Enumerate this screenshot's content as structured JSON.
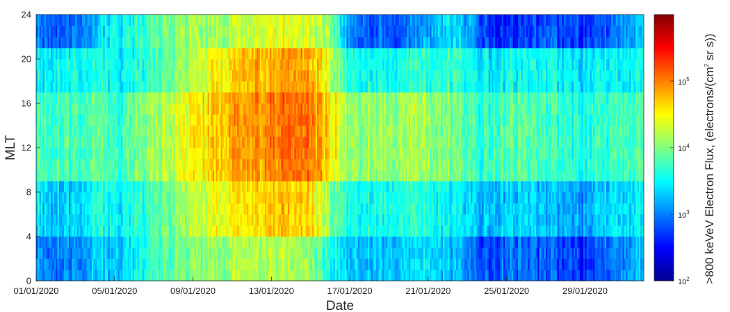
{
  "chart_data": {
    "type": "heatmap",
    "xlabel": "Date",
    "ylabel": "MLT",
    "x_tick_labels": [
      "01/01/2020",
      "05/01/2020",
      "09/01/2020",
      "13/01/2020",
      "17/01/2020",
      "21/01/2020",
      "25/01/2020",
      "29/01/2020"
    ],
    "x_range": [
      "2020-01-01",
      "2020-02-01"
    ],
    "y_ticks": [
      0,
      4,
      8,
      12,
      16,
      20,
      24
    ],
    "ylim": [
      0,
      24
    ],
    "y_bin_hours": 1,
    "colorbar": {
      "label_prefix": ">800 keVeV Electron Flux, (electrons/(cm",
      "label_sup": "2",
      "label_suffix": " sr s))",
      "scale": "log",
      "range": [
        100,
        1000000
      ],
      "ticks": [
        {
          "base": "10",
          "exp": "2"
        },
        {
          "base": "10",
          "exp": "3"
        },
        {
          "base": "10",
          "exp": "4"
        },
        {
          "base": "10",
          "exp": "5"
        }
      ],
      "colormap": "jet"
    },
    "daily_log10_flux_by_mlt_sector": {
      "description_days": "day 1 = 01/01/2020 ... day 32",
      "night_21_24": [
        3.0,
        2.9,
        2.9,
        3.2,
        3.5,
        3.6,
        3.8,
        4.0,
        4.1,
        4.1,
        4.2,
        4.3,
        4.4,
        4.4,
        4.3,
        4.1,
        3.0,
        2.9,
        2.9,
        3.0,
        3.2,
        3.4,
        3.2,
        2.7,
        2.6,
        2.7,
        2.8,
        2.8,
        2.7,
        2.8,
        3.1,
        3.3
      ],
      "evening_17_21": [
        3.5,
        3.5,
        3.5,
        3.6,
        3.4,
        3.6,
        3.7,
        4.0,
        4.2,
        4.5,
        4.6,
        4.8,
        4.8,
        4.9,
        4.8,
        4.3,
        3.6,
        3.6,
        3.6,
        3.7,
        3.7,
        3.7,
        3.6,
        3.4,
        3.5,
        3.5,
        3.5,
        3.5,
        3.4,
        3.5,
        3.5,
        3.6
      ],
      "day_9_17": [
        3.8,
        3.8,
        3.7,
        3.9,
        3.6,
        3.9,
        4.1,
        4.3,
        4.5,
        4.7,
        4.8,
        4.9,
        5.0,
        5.1,
        5.0,
        4.6,
        4.1,
        4.1,
        4.1,
        4.2,
        4.1,
        4.0,
        3.8,
        3.7,
        3.8,
        3.8,
        3.7,
        3.7,
        3.6,
        3.7,
        3.8,
        3.8
      ],
      "dawn_4_9": [
        3.4,
        3.3,
        3.3,
        3.6,
        3.4,
        3.6,
        3.8,
        4.0,
        4.2,
        4.4,
        4.5,
        4.6,
        4.7,
        4.7,
        4.6,
        4.0,
        3.6,
        3.6,
        3.6,
        3.7,
        3.6,
        3.5,
        3.4,
        3.2,
        3.3,
        3.3,
        3.2,
        3.2,
        3.1,
        3.3,
        3.4,
        3.5
      ],
      "night_0_4": [
        3.1,
        3.0,
        3.0,
        3.3,
        3.2,
        3.5,
        3.7,
        3.9,
        4.0,
        4.1,
        4.1,
        4.2,
        4.2,
        4.2,
        4.0,
        3.6,
        3.3,
        3.3,
        3.3,
        3.4,
        3.4,
        3.3,
        3.0,
        2.8,
        2.9,
        2.9,
        2.8,
        2.8,
        2.7,
        2.9,
        3.1,
        3.3
      ]
    }
  }
}
